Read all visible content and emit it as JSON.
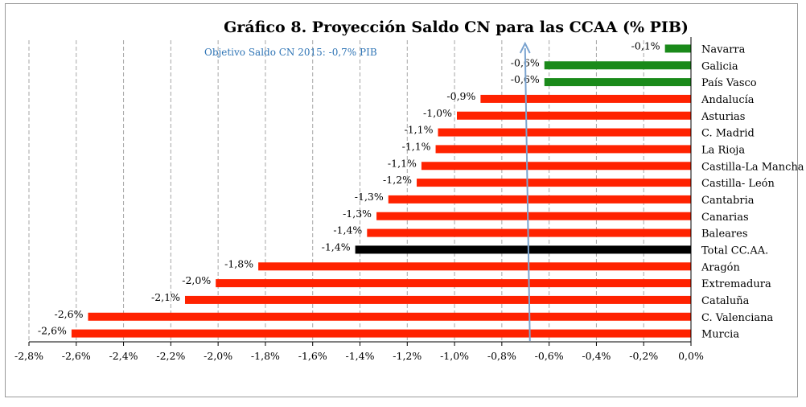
{
  "chart_data": {
    "type": "bar",
    "orientation": "horizontal",
    "title": "Gráfico 8. Proyección Saldo CN para las CCAA (% PIB)",
    "annotation": "Objetivo Saldo CN 2015: -0,7% PIB",
    "target_value": -0.7,
    "categories": [
      "Navarra",
      "Galicia",
      "País Vasco",
      "Andalucía",
      "Asturias",
      "C. Madrid",
      "La Rioja",
      "Castilla-La Mancha",
      "Castilla- León",
      "Cantabria",
      "Canarias",
      "Baleares",
      "Total CC.AA.",
      "Aragón",
      "Extremadura",
      "Cataluña",
      "C. Valenciana",
      "Murcia"
    ],
    "values": [
      -0.11,
      -0.62,
      -0.62,
      -0.89,
      -0.99,
      -1.07,
      -1.08,
      -1.14,
      -1.16,
      -1.28,
      -1.33,
      -1.37,
      -1.42,
      -1.83,
      -2.01,
      -2.14,
      -2.55,
      -2.62
    ],
    "value_labels": [
      "-0,1%",
      "-0,6%",
      "-0,6%",
      "-0,9%",
      "-1,0%",
      "-1,1%",
      "-1,1%",
      "-1,1%",
      "-1,2%",
      "-1,3%",
      "-1,3%",
      "-1,4%",
      "-1,4%",
      "-1,8%",
      "-2,0%",
      "-2,1%",
      "-2,6%",
      "-2,6%"
    ],
    "bar_colors": [
      "#1a8a1a",
      "#1a8a1a",
      "#1a8a1a",
      "#ff2200",
      "#ff2200",
      "#ff2200",
      "#ff2200",
      "#ff2200",
      "#ff2200",
      "#ff2200",
      "#ff2200",
      "#ff2200",
      "#000000",
      "#ff2200",
      "#ff2200",
      "#ff2200",
      "#ff2200",
      "#ff2200"
    ],
    "xlim": [
      -2.8,
      0.0
    ],
    "xticks": [
      -2.8,
      -2.6,
      -2.4,
      -2.2,
      -2.0,
      -1.8,
      -1.6,
      -1.4,
      -1.2,
      -1.0,
      -0.8,
      -0.6,
      -0.4,
      -0.2,
      0.0
    ],
    "xtick_labels": [
      "-2,8%",
      "-2,6%",
      "-2,4%",
      "-2,2%",
      "-2,0%",
      "-1,8%",
      "-1,6%",
      "-1,4%",
      "-1,2%",
      "-1,0%",
      "-0,8%",
      "-0,6%",
      "-0,4%",
      "-0,2%",
      "0,0%"
    ],
    "grid": "vertical-dashed",
    "colors": {
      "positive_balance": "#1a8a1a",
      "deficit": "#ff2200",
      "total": "#000000",
      "target_arrow": "#7aa3cf",
      "annotation_text": "#2e74b5",
      "gridline": "#a6a6a6"
    }
  }
}
